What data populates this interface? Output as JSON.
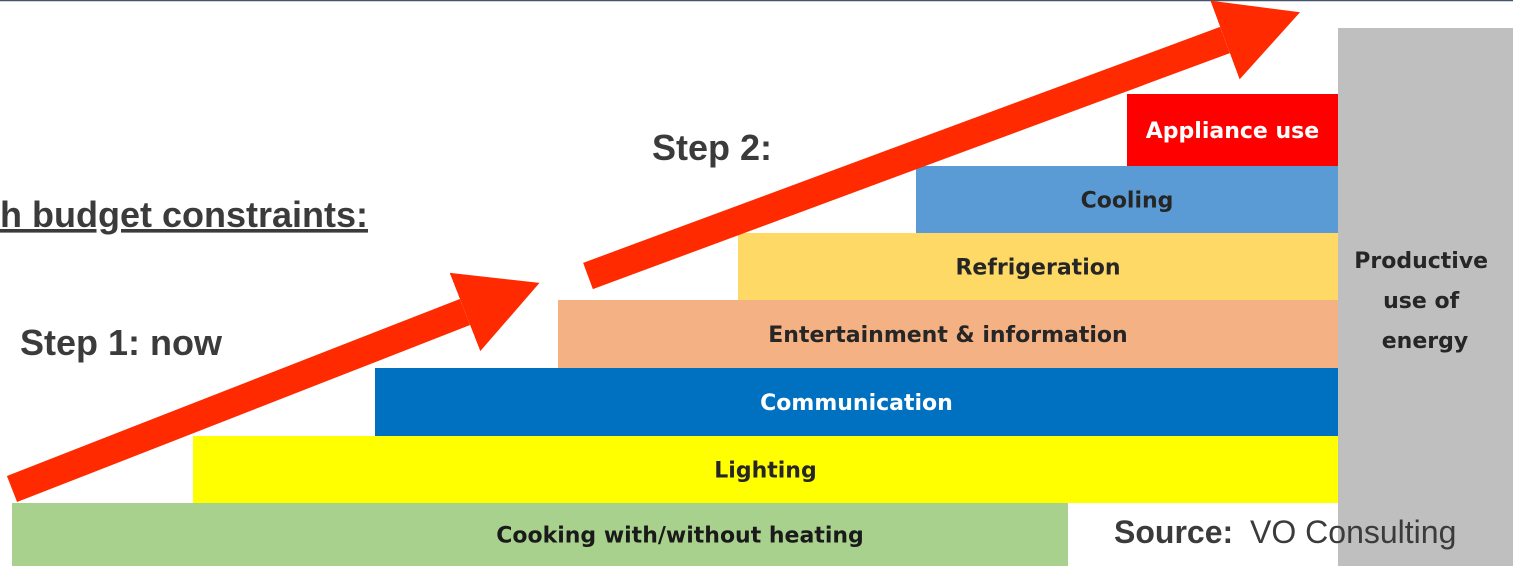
{
  "heading": "h budget constraints:",
  "step1": "Step 1: now",
  "step2": "Step 2:",
  "steps": [
    "Cooking with/without heating",
    "Lighting",
    "Communication",
    "Entertainment & information",
    "Refrigeration",
    "Cooling",
    "Appliance use"
  ],
  "productive": [
    "Productive",
    "use of",
    "energy"
  ],
  "source": {
    "label": "Source:",
    "text": "VO Consulting"
  }
}
